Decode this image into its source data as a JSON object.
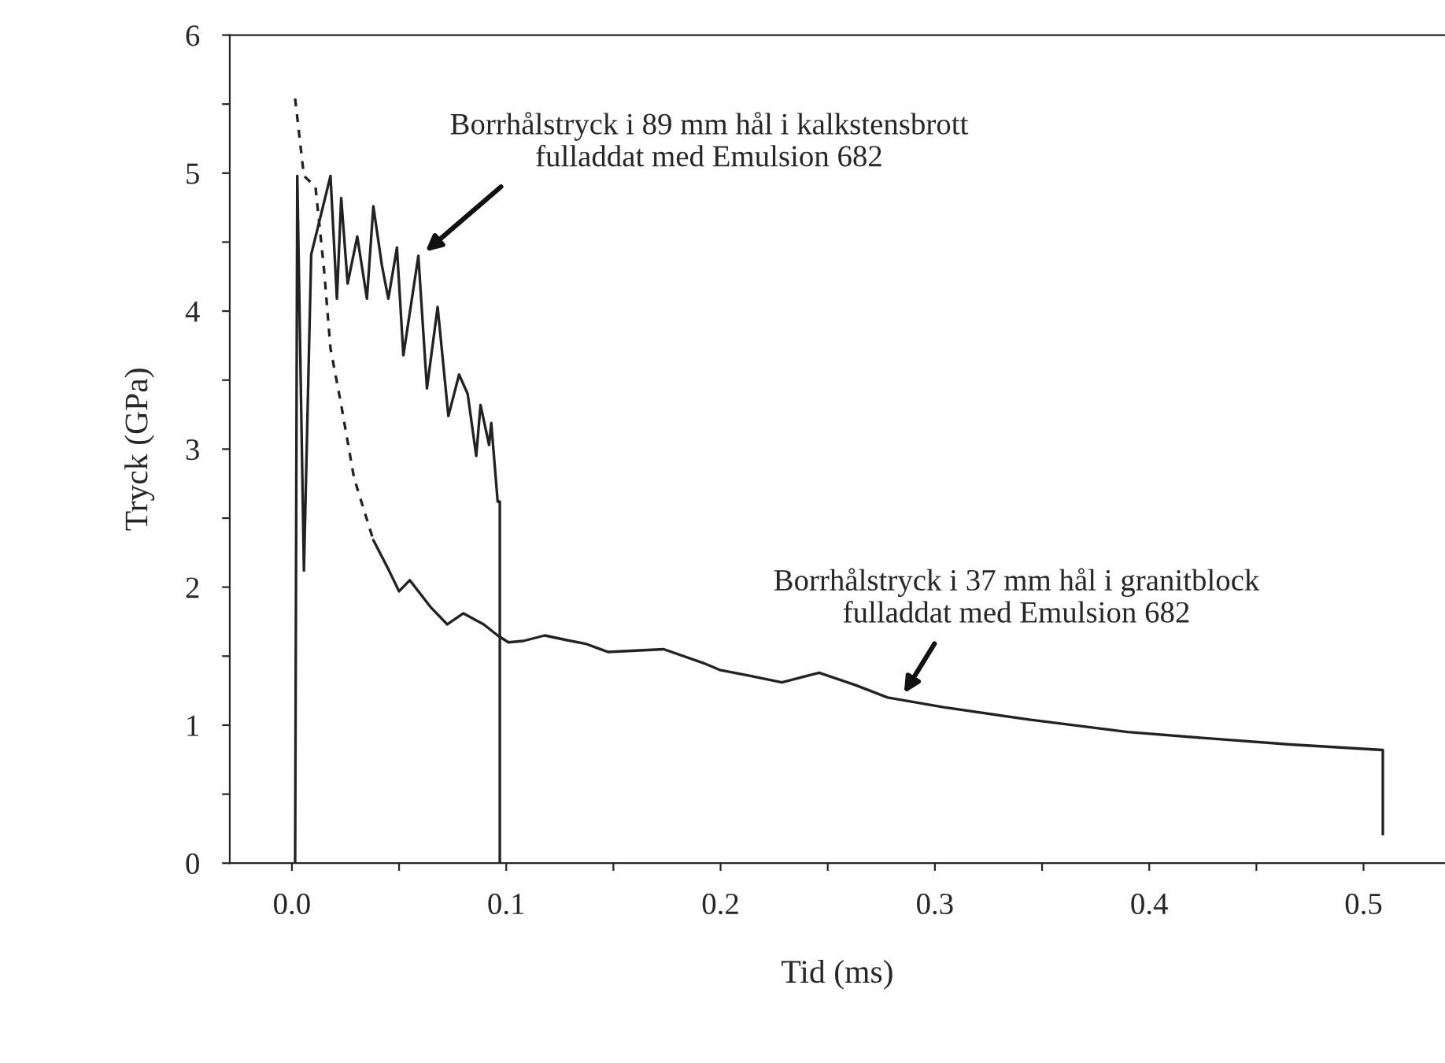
{
  "chart_data": {
    "type": "line",
    "xlabel": "Tid (ms)",
    "ylabel": "Tryck (GPa)",
    "xlim": [
      -0.029,
      0.538
    ],
    "ylim": [
      0,
      6
    ],
    "xticks": [
      {
        "value": 0.0,
        "label": "0.0"
      },
      {
        "value": 0.05,
        "label": null
      },
      {
        "value": 0.1,
        "label": "0.1"
      },
      {
        "value": 0.15,
        "label": null
      },
      {
        "value": 0.2,
        "label": "0.2"
      },
      {
        "value": 0.25,
        "label": null
      },
      {
        "value": 0.3,
        "label": "0.3"
      },
      {
        "value": 0.35,
        "label": null
      },
      {
        "value": 0.4,
        "label": "0.4"
      },
      {
        "value": 0.45,
        "label": null
      },
      {
        "value": 0.5,
        "label": "0.5"
      }
    ],
    "yticks": [
      0,
      {
        "value": 0.5,
        "label": null
      },
      1,
      {
        "value": 1.5,
        "label": null
      },
      2,
      {
        "value": 2.5,
        "label": null
      },
      3,
      {
        "value": 3.5,
        "label": null
      },
      4,
      {
        "value": 4.5,
        "label": null
      },
      5,
      {
        "value": 5.5,
        "label": null
      },
      6
    ],
    "grid": false,
    "legend": false,
    "marker": "none",
    "series": [
      {
        "color": "#222222",
        "line_style": "solid",
        "x": [
          0.0015,
          0.0025,
          0.0056,
          0.009,
          0.018,
          0.021,
          0.023,
          0.026,
          0.0305,
          0.035,
          0.038,
          0.042,
          0.045,
          0.049,
          0.052,
          0.059,
          0.063,
          0.068,
          0.073,
          0.078,
          0.082,
          0.086,
          0.088,
          0.092,
          0.093,
          0.096,
          0.097,
          0.097
        ],
        "values": [
          0,
          4.98,
          2.12,
          4.41,
          4.98,
          4.09,
          4.82,
          4.2,
          4.54,
          4.09,
          4.76,
          4.33,
          4.09,
          4.46,
          3.68,
          4.4,
          3.44,
          4.03,
          3.24,
          3.54,
          3.4,
          2.95,
          3.32,
          3.03,
          3.19,
          2.62,
          2.62,
          0
        ]
      },
      {
        "color": "#222222",
        "line_style": "dashed",
        "x": [
          0.0015,
          0.0056,
          0.011,
          0.015,
          0.018,
          0.023,
          0.029,
          0.038
        ],
        "values": [
          5.54,
          4.98,
          4.9,
          4.3,
          3.73,
          3.32,
          2.79,
          2.34
        ]
      },
      {
        "color": "#222222",
        "line_style": "solid",
        "x": [
          0.038,
          0.045,
          0.05,
          0.055,
          0.065,
          0.0725,
          0.08,
          0.0895,
          0.096,
          0.101,
          0.108,
          0.118,
          0.127,
          0.137,
          0.1475,
          0.1735,
          0.192,
          0.1996,
          0.213,
          0.2286,
          0.246,
          0.263,
          0.278,
          0.304,
          0.344,
          0.39,
          0.431,
          0.466,
          0.509,
          0.509
        ],
        "values": [
          2.34,
          2.13,
          1.97,
          2.05,
          1.85,
          1.73,
          1.81,
          1.73,
          1.65,
          1.6,
          1.61,
          1.65,
          1.62,
          1.59,
          1.53,
          1.55,
          1.45,
          1.4,
          1.36,
          1.31,
          1.38,
          1.29,
          1.2,
          1.13,
          1.04,
          0.95,
          0.9,
          0.86,
          0.82,
          0.21
        ]
      }
    ],
    "annotations": [
      {
        "text": "Borrhålstryck i 89 mm hål i kalkstensbrott\nfulladdat med Emulsion 682",
        "x": 0.06,
        "y": 4.4
      },
      {
        "text": "Borrhålstryck i 37 mm hål i granitblock\nfulladdat med Emulsion 682",
        "x": 0.284,
        "y": 1.19
      }
    ]
  }
}
